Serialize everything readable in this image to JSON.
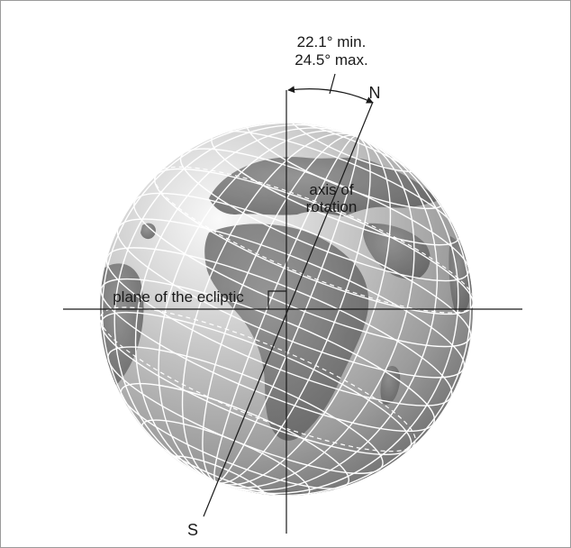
{
  "labels": {
    "tilt_min": "22.1° min.",
    "tilt_max": "24.5° max.",
    "north": "N",
    "south": "S",
    "axis_line1": "axis of",
    "axis_line2": "rotation",
    "ecliptic": "plane of the ecliptic"
  },
  "colors": {
    "line": "#1a1a1a",
    "grid": "#ffffff",
    "land": "#6e6e6e",
    "frame": "#9a9a9a"
  }
}
